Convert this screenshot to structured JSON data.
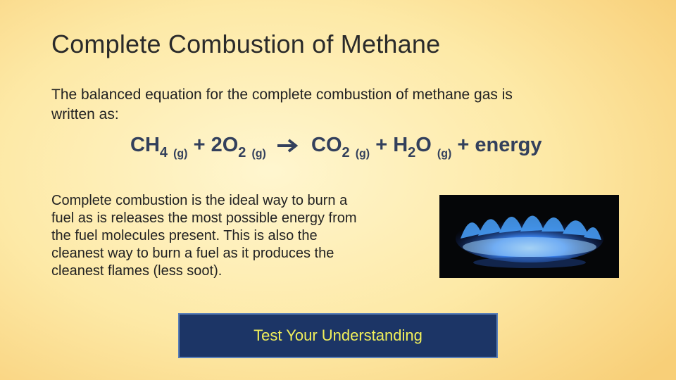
{
  "title": "Complete Combustion of Methane",
  "intro": {
    "lines": [
      "The balanced equation for the complete combustion of methane gas is",
      "written as:"
    ]
  },
  "equation": {
    "parts": [
      "CH",
      "4",
      "(g)",
      "+ 2O",
      "2",
      "(g)",
      "CO",
      "2",
      "(g)",
      "+ H",
      "2",
      "O",
      "(g)",
      "+ energy"
    ]
  },
  "body": {
    "lines": [
      "Complete combustion is the ideal way to burn a",
      "fuel as is releases the most possible energy from",
      "the fuel molecules present.  This is also the",
      "cleanest way to burn a fuel as it produces the",
      "cleanest flames (less soot)."
    ]
  },
  "button": {
    "label": "Test Your Understanding"
  }
}
